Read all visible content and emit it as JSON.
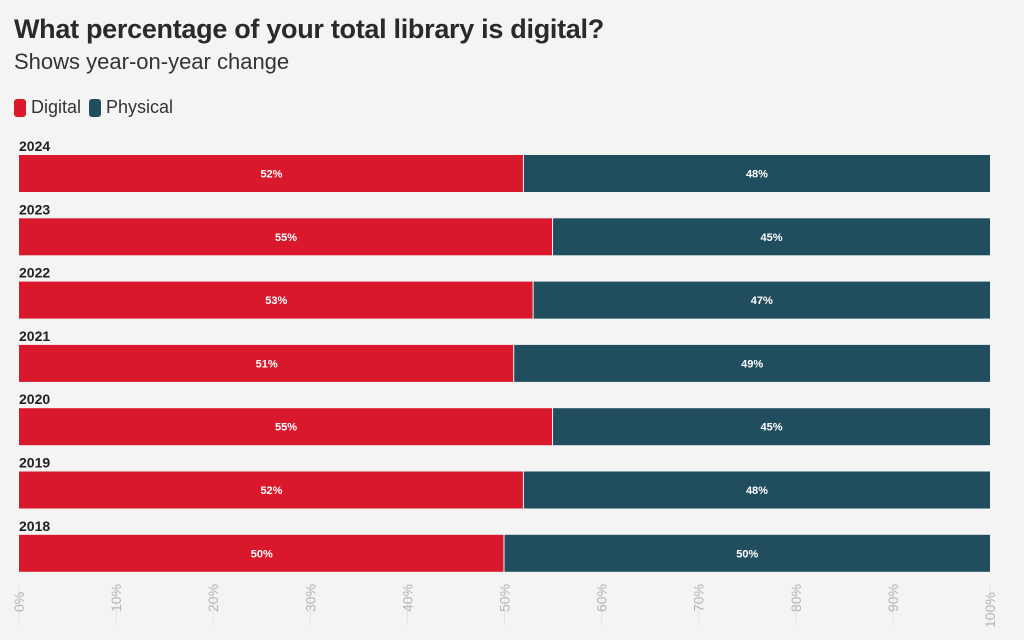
{
  "chart_data": {
    "type": "bar",
    "stacked": true,
    "orientation": "horizontal",
    "title": "What percentage of your total library is digital?",
    "subtitle": "Shows year-on-year change",
    "categories": [
      "2024",
      "2023",
      "2022",
      "2021",
      "2020",
      "2019",
      "2018"
    ],
    "series": [
      {
        "name": "Digital",
        "color": "#d9192b",
        "values": [
          52,
          55,
          53,
          51,
          55,
          52,
          50
        ]
      },
      {
        "name": "Physical",
        "color": "#214e5e",
        "values": [
          48,
          45,
          47,
          49,
          45,
          48,
          50
        ]
      }
    ],
    "xlim": [
      0,
      100
    ],
    "xticks": [
      "0%",
      "10%",
      "20%",
      "30%",
      "40%",
      "50%",
      "60%",
      "70%",
      "80%",
      "90%",
      "100%"
    ],
    "legend": "top-left",
    "grid": true
  }
}
